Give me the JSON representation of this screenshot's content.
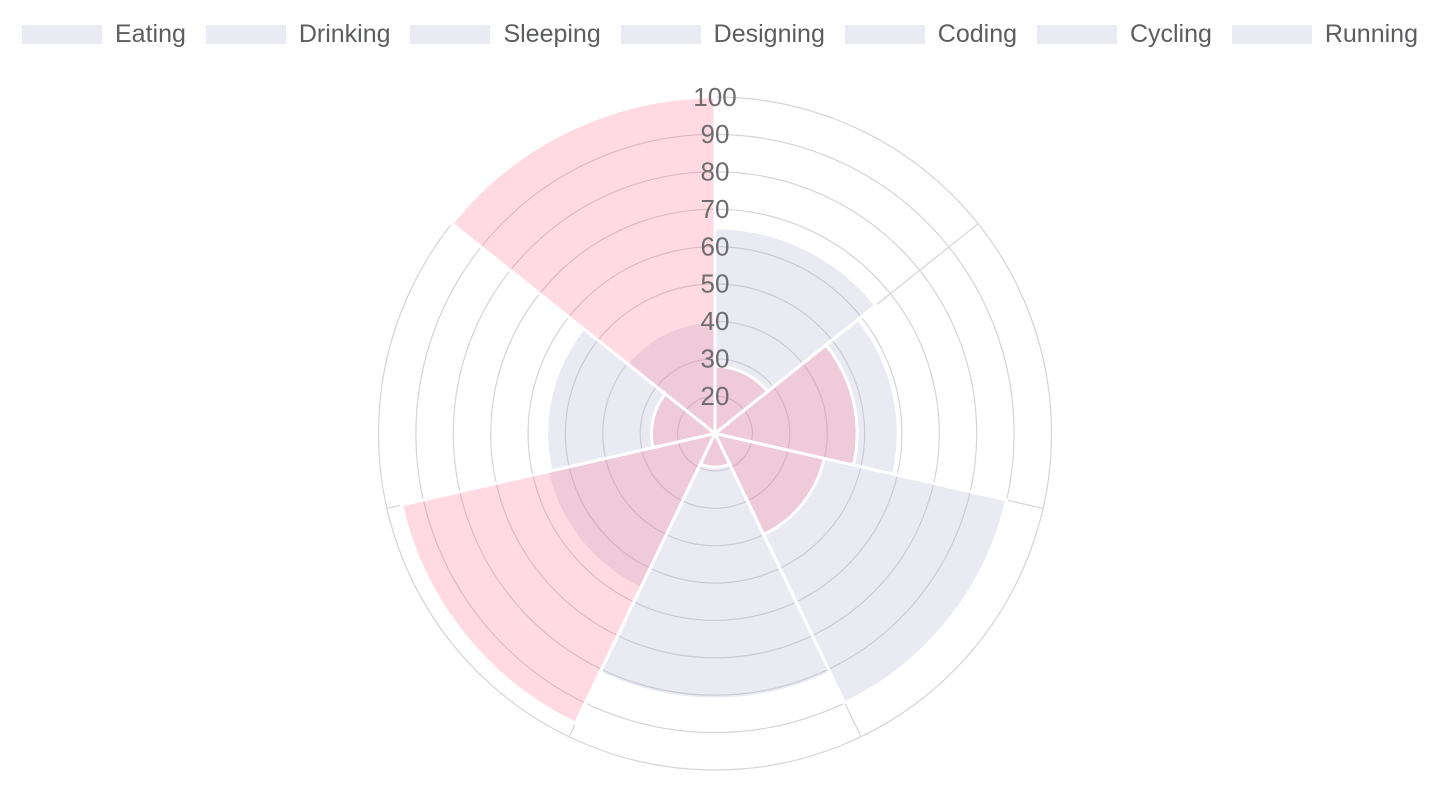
{
  "legend": {
    "items": [
      {
        "label": "Eating"
      },
      {
        "label": "Drinking"
      },
      {
        "label": "Sleeping"
      },
      {
        "label": "Designing"
      },
      {
        "label": "Coding"
      },
      {
        "label": "Cycling"
      },
      {
        "label": "Running"
      }
    ]
  },
  "chart_data": {
    "type": "polarArea",
    "title": "",
    "categories": [
      "Eating",
      "Drinking",
      "Sleeping",
      "Designing",
      "Coding",
      "Cycling",
      "Running"
    ],
    "series": [
      {
        "id": "gray-series",
        "color": "rgba(178,178,209,0.28)",
        "values": [
          65,
          59,
          90,
          81,
          56,
          55,
          40
        ]
      },
      {
        "id": "pink-series",
        "color": "rgba(255,99,132,0.24)",
        "values": [
          28,
          48,
          40,
          19,
          96,
          27,
          100
        ]
      }
    ],
    "scale": {
      "min": 10,
      "max": 100,
      "step": 10,
      "tick_labels": [
        "20",
        "30",
        "40",
        "50",
        "60",
        "70",
        "80",
        "90",
        "100"
      ]
    },
    "start_angle_deg": -90,
    "clockwise": true,
    "legend_position": "top",
    "grid": {
      "show": true,
      "angle_lines": true
    },
    "colors": {
      "grid_line": "#d4d4d9",
      "tick_label": "#6e6c70",
      "legend_label": "#5b5d60",
      "wedge_border": "#ffffff",
      "swatch": "rgba(178,178,209,0.28)",
      "background": "#ffffff"
    }
  }
}
